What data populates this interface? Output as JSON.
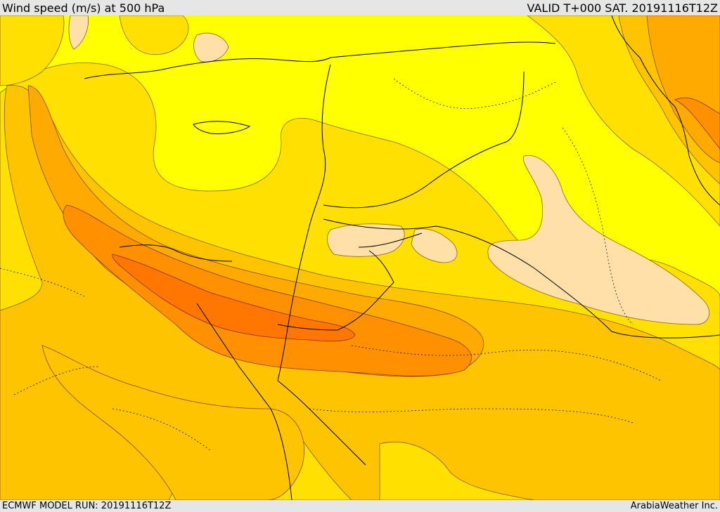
{
  "header": {
    "title": "Wind speed (m/s) at 500 hPa",
    "valid": "VALID T+000 SAT. 20191116T12Z"
  },
  "footer": {
    "model_run": "ECMWF MODEL RUN: 20191116T12Z",
    "credit": "ArabiaWeather Inc."
  },
  "colors": {
    "bg": "#ffff00",
    "band1": "#ffe000",
    "band2": "#ffc400",
    "band3": "#ffaa00",
    "band4": "#ff9000",
    "band5": "#ff7700",
    "weak": "#ffe0a8"
  }
}
